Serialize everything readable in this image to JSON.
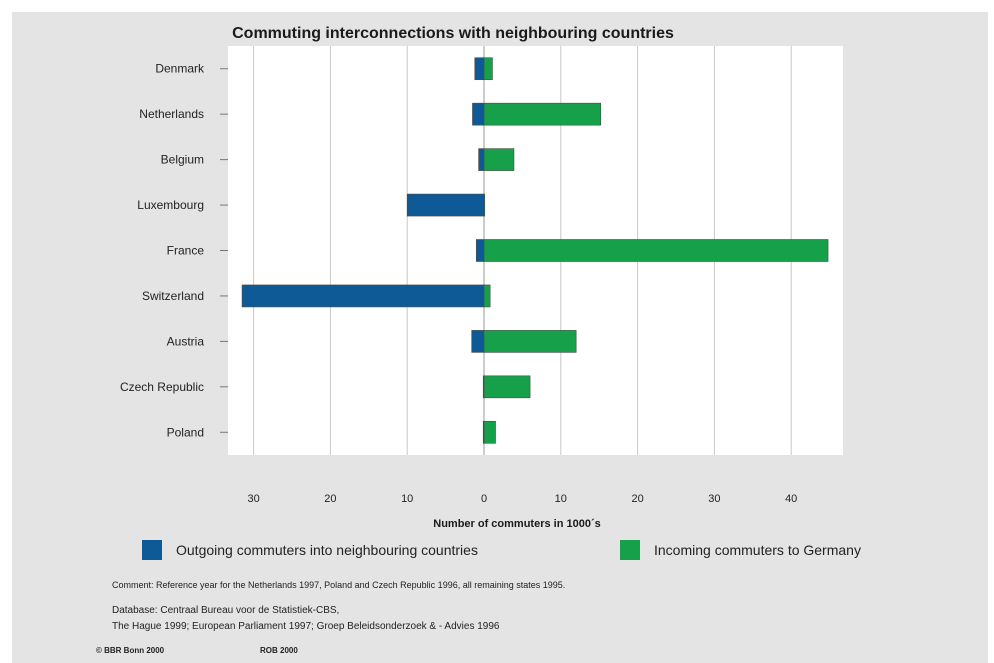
{
  "chart_data": {
    "type": "bar",
    "title": "Commuting interconnections with neighbouring countries",
    "xlabel": "Number of commuters in 1000´s",
    "ylabel": "",
    "orientation": "horizontal",
    "xlim": [
      -33,
      47
    ],
    "xticks": [
      -30,
      -20,
      -10,
      0,
      10,
      20,
      30,
      40
    ],
    "xtick_labels": [
      "30",
      "20",
      "10",
      "0",
      "10",
      "20",
      "30",
      "40"
    ],
    "grid": true,
    "legend_position": "bottom",
    "categories": [
      "Denmark",
      "Netherlands",
      "Belgium",
      "Luxembourg",
      "France",
      "Switzerland",
      "Austria",
      "Czech Republic",
      "Poland"
    ],
    "series": [
      {
        "name": "Outgoing commuters into neighbouring countries",
        "color": "#0d5a96",
        "direction": "negative",
        "values": [
          1.2,
          1.5,
          0.7,
          10.0,
          1.0,
          31.5,
          1.6,
          0.1,
          0.1
        ]
      },
      {
        "name": "Incoming commuters to Germany",
        "color": "#16a04a",
        "direction": "positive",
        "values": [
          1.1,
          15.2,
          3.9,
          0.1,
          44.8,
          0.8,
          12.0,
          6.0,
          1.5
        ]
      }
    ]
  },
  "footer": {
    "comment": "Comment: Reference year for the Netherlands 1997, Poland and Czech Republic 1996, all remaining states 1995.",
    "database_line1": "Database: Centraal Bureau voor de Statistiek-CBS,",
    "database_line2": "The Hague 1999; European Parliament 1997; Groep Beleidsonderzoek & - Advies 1996",
    "copyright": "© BBR Bonn 2000",
    "code": "ROB 2000"
  }
}
